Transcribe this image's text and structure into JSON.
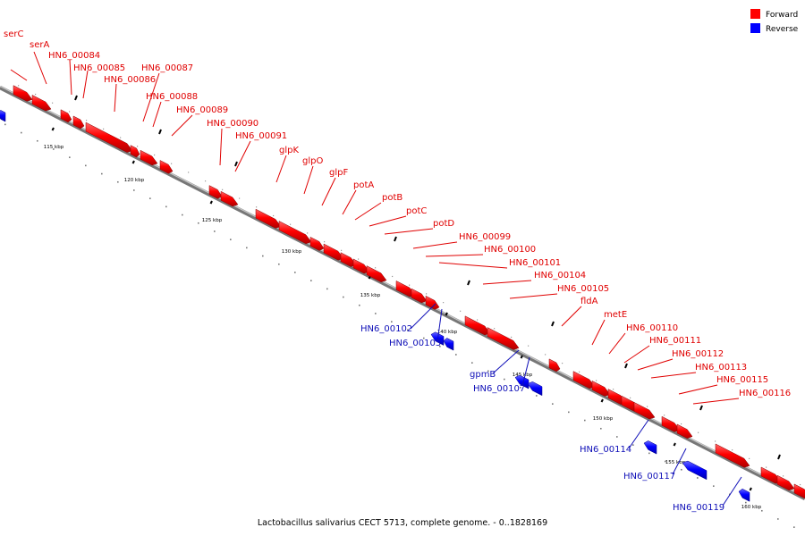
{
  "legend": {
    "forward": {
      "label": "Forward",
      "color": "#ff0000"
    },
    "reverse": {
      "label": "Reverse",
      "color": "#0000ff"
    }
  },
  "caption": "Lactobacillus salivarius CECT 5713, complete genome. - 0..1828169",
  "scale_labels": [
    "115 kbp",
    "120 kbp",
    "125 kbp",
    "130 kbp",
    "135 kbp",
    "140 kbp",
    "145 kbp",
    "150 kbp",
    "155 kbp",
    "160 kbp"
  ],
  "forward_genes": [
    "serC",
    "serA",
    "HN6_00084",
    "HN6_00085",
    "HN6_00086",
    "HN6_00087",
    "HN6_00088",
    "HN6_00089",
    "HN6_00090",
    "HN6_00091",
    "glpK",
    "glpO",
    "glpF",
    "potA",
    "potB",
    "potC",
    "potD",
    "HN6_00099",
    "HN6_00100",
    "HN6_00101",
    "HN6_00104",
    "HN6_00105",
    "fldA",
    "metE",
    "HN6_00110",
    "HN6_00111",
    "HN6_00112",
    "HN6_00113",
    "HN6_00115",
    "HN6_00116"
  ],
  "reverse_genes": [
    "HN6_00102",
    "HN6_00103",
    "gpmB",
    "HN6_00107",
    "HN6_00114",
    "HN6_00117",
    "HN6_00119"
  ]
}
